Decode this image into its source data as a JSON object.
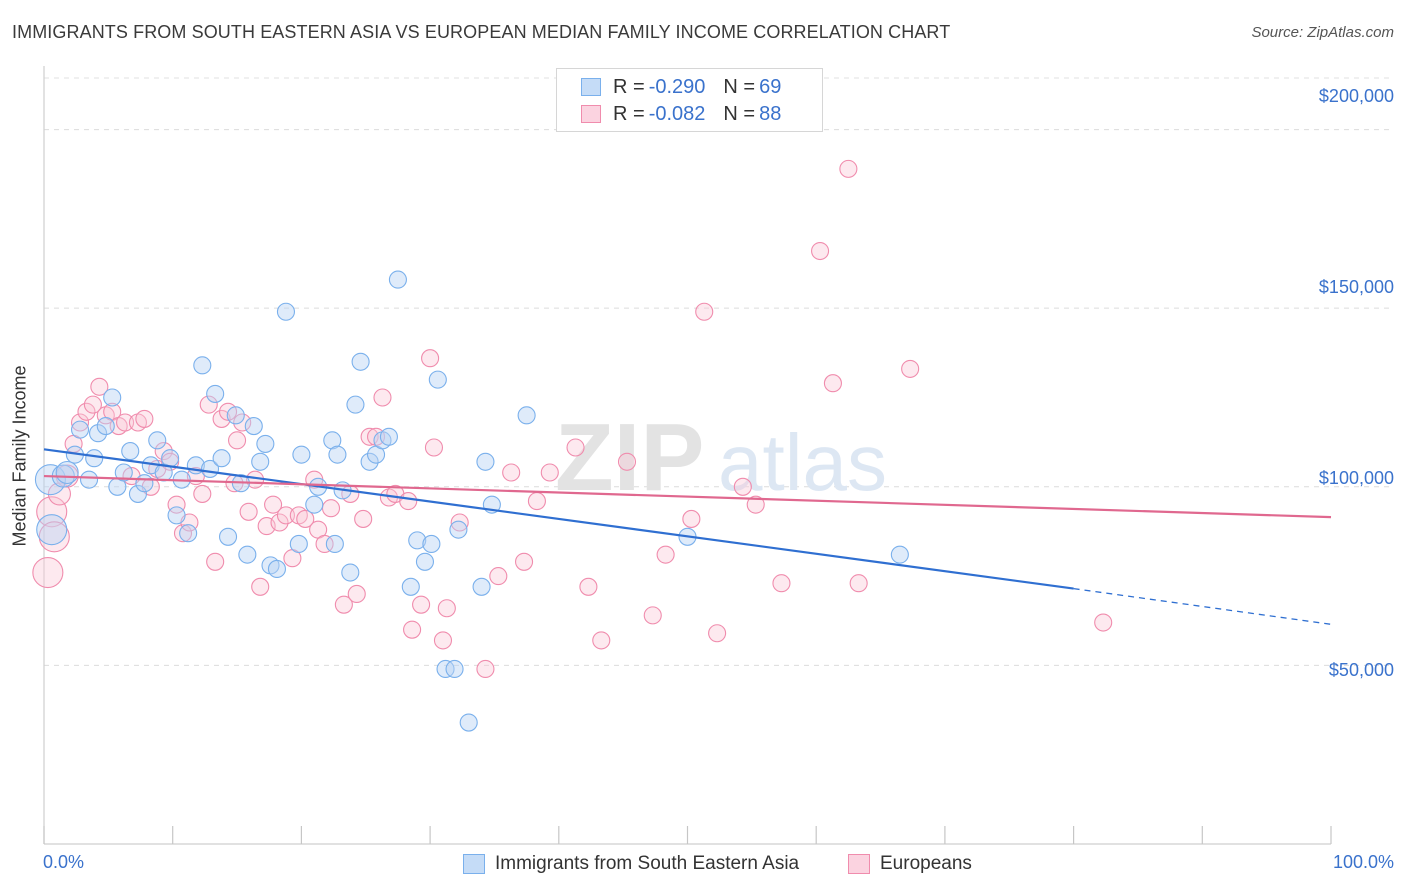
{
  "title": "IMMIGRANTS FROM SOUTH EASTERN ASIA VS EUROPEAN MEDIAN FAMILY INCOME CORRELATION CHART",
  "source": "Source: ZipAtlas.com",
  "watermark": {
    "zip": "ZIP",
    "atlas": "atlas"
  },
  "legend": {
    "rows": [
      {
        "r_label": "R = ",
        "r_value": "-0.290",
        "n_label": "N = ",
        "n_value": "69",
        "color": "#7ab0ec",
        "fill": "#c5dcf7"
      },
      {
        "r_label": "R = ",
        "r_value": "-0.082",
        "n_label": "N = ",
        "n_value": "88",
        "color": "#f08cad",
        "fill": "#fbd3e0"
      }
    ]
  },
  "bottom_legend": {
    "items": [
      {
        "label": "Immigrants from South Eastern Asia",
        "color": "#7ab0ec",
        "fill": "#c5dcf7"
      },
      {
        "label": "Europeans",
        "color": "#f08cad",
        "fill": "#fbd3e0"
      }
    ]
  },
  "chart_data": {
    "type": "scatter",
    "title": "IMMIGRANTS FROM SOUTH EASTERN ASIA VS EUROPEAN MEDIAN FAMILY INCOME CORRELATION CHART",
    "xlabel": "",
    "ylabel": "Median Family Income",
    "xlim": [
      0,
      100
    ],
    "ylim": [
      0,
      215000
    ],
    "x_tick_labels": [
      "0.0%",
      "100.0%"
    ],
    "y_ticks": [
      50000,
      100000,
      150000,
      200000
    ],
    "y_tick_labels": [
      "$50,000",
      "$100,000",
      "$150,000",
      "$200,000"
    ],
    "grid": "horizontal dashed",
    "legend_position": "top-center",
    "colors": {
      "blue_line": "#2f6fd1",
      "pink_line": "#e0688f"
    },
    "series": [
      {
        "name": "Immigrants from South Eastern Asia",
        "trend": {
          "x_start": 0,
          "y_start": 110500,
          "x_solid_end": 80,
          "y_at_solid_end": 71500,
          "x_end": 100,
          "y_end": 61500
        },
        "points": [
          [
            0.5,
            102000
          ],
          [
            0.6,
            88000
          ],
          [
            1.5,
            103000
          ],
          [
            1.8,
            104000
          ],
          [
            2.4,
            109000
          ],
          [
            2.8,
            116000
          ],
          [
            3.5,
            102000
          ],
          [
            3.9,
            108000
          ],
          [
            4.2,
            115000
          ],
          [
            4.8,
            117000
          ],
          [
            5.3,
            125000
          ],
          [
            5.7,
            100000
          ],
          [
            6.2,
            104000
          ],
          [
            6.7,
            110000
          ],
          [
            7.3,
            98000
          ],
          [
            7.8,
            101000
          ],
          [
            8.3,
            106000
          ],
          [
            8.8,
            113000
          ],
          [
            9.3,
            104000
          ],
          [
            9.8,
            108000
          ],
          [
            10.3,
            92000
          ],
          [
            10.7,
            102000
          ],
          [
            11.2,
            87000
          ],
          [
            11.8,
            106000
          ],
          [
            12.3,
            134000
          ],
          [
            12.9,
            105000
          ],
          [
            13.3,
            126000
          ],
          [
            13.8,
            108000
          ],
          [
            14.3,
            86000
          ],
          [
            14.9,
            120000
          ],
          [
            15.3,
            101000
          ],
          [
            15.8,
            81000
          ],
          [
            16.3,
            117000
          ],
          [
            16.8,
            107000
          ],
          [
            17.2,
            112000
          ],
          [
            17.6,
            78000
          ],
          [
            18.1,
            77000
          ],
          [
            18.8,
            149000
          ],
          [
            19.8,
            84000
          ],
          [
            20.0,
            109000
          ],
          [
            21.0,
            95000
          ],
          [
            21.3,
            100000
          ],
          [
            22.4,
            113000
          ],
          [
            22.6,
            84000
          ],
          [
            22.8,
            109000
          ],
          [
            23.2,
            99000
          ],
          [
            23.8,
            76000
          ],
          [
            24.2,
            123000
          ],
          [
            24.6,
            135000
          ],
          [
            25.3,
            107000
          ],
          [
            25.8,
            109000
          ],
          [
            26.3,
            113000
          ],
          [
            26.8,
            114000
          ],
          [
            27.5,
            158000
          ],
          [
            28.5,
            72000
          ],
          [
            29.0,
            85000
          ],
          [
            29.6,
            79000
          ],
          [
            30.1,
            84000
          ],
          [
            30.6,
            130000
          ],
          [
            31.2,
            49000
          ],
          [
            31.9,
            49000
          ],
          [
            32.2,
            88000
          ],
          [
            33.0,
            34000
          ],
          [
            34.0,
            72000
          ],
          [
            34.3,
            107000
          ],
          [
            34.8,
            95000
          ],
          [
            37.5,
            120000
          ],
          [
            50.0,
            86000
          ],
          [
            66.5,
            81000
          ]
        ]
      },
      {
        "name": "Europeans",
        "trend": {
          "x_start": 0,
          "y_start": 103000,
          "x_end": 100,
          "y_end": 91500
        },
        "points": [
          [
            0.3,
            76000
          ],
          [
            0.6,
            93000
          ],
          [
            0.8,
            86000
          ],
          [
            1.2,
            98000
          ],
          [
            1.8,
            103000
          ],
          [
            2.3,
            112000
          ],
          [
            2.8,
            118000
          ],
          [
            3.3,
            121000
          ],
          [
            3.8,
            123000
          ],
          [
            4.3,
            128000
          ],
          [
            4.8,
            120000
          ],
          [
            5.3,
            121000
          ],
          [
            5.8,
            117000
          ],
          [
            6.3,
            118000
          ],
          [
            6.8,
            103000
          ],
          [
            7.3,
            118000
          ],
          [
            7.8,
            119000
          ],
          [
            8.3,
            100000
          ],
          [
            8.8,
            105000
          ],
          [
            9.3,
            110000
          ],
          [
            9.8,
            107000
          ],
          [
            10.3,
            95000
          ],
          [
            10.8,
            87000
          ],
          [
            11.3,
            90000
          ],
          [
            11.8,
            103000
          ],
          [
            12.3,
            98000
          ],
          [
            12.8,
            123000
          ],
          [
            13.3,
            79000
          ],
          [
            13.8,
            119000
          ],
          [
            14.3,
            121000
          ],
          [
            14.8,
            101000
          ],
          [
            15.0,
            113000
          ],
          [
            15.4,
            118000
          ],
          [
            15.9,
            93000
          ],
          [
            16.4,
            102000
          ],
          [
            16.8,
            72000
          ],
          [
            17.3,
            89000
          ],
          [
            17.8,
            95000
          ],
          [
            18.3,
            90000
          ],
          [
            18.8,
            92000
          ],
          [
            19.3,
            80000
          ],
          [
            19.8,
            92000
          ],
          [
            20.3,
            91000
          ],
          [
            21.0,
            102000
          ],
          [
            21.3,
            88000
          ],
          [
            21.8,
            84000
          ],
          [
            22.3,
            94000
          ],
          [
            23.3,
            67000
          ],
          [
            23.8,
            98000
          ],
          [
            24.3,
            70000
          ],
          [
            24.8,
            91000
          ],
          [
            25.3,
            114000
          ],
          [
            25.8,
            114000
          ],
          [
            26.3,
            125000
          ],
          [
            26.8,
            97000
          ],
          [
            27.3,
            98000
          ],
          [
            28.3,
            96000
          ],
          [
            28.6,
            60000
          ],
          [
            29.3,
            67000
          ],
          [
            30.0,
            136000
          ],
          [
            30.3,
            111000
          ],
          [
            31.0,
            57000
          ],
          [
            31.3,
            66000
          ],
          [
            32.3,
            90000
          ],
          [
            34.3,
            49000
          ],
          [
            35.3,
            75000
          ],
          [
            36.3,
            104000
          ],
          [
            37.3,
            79000
          ],
          [
            38.3,
            96000
          ],
          [
            39.3,
            104000
          ],
          [
            41.3,
            111000
          ],
          [
            42.3,
            72000
          ],
          [
            43.3,
            57000
          ],
          [
            45.3,
            107000
          ],
          [
            47.3,
            64000
          ],
          [
            48.3,
            81000
          ],
          [
            50.3,
            91000
          ],
          [
            51.3,
            149000
          ],
          [
            52.3,
            59000
          ],
          [
            54.3,
            100000
          ],
          [
            55.3,
            95000
          ],
          [
            57.3,
            73000
          ],
          [
            60.3,
            166000
          ],
          [
            61.3,
            129000
          ],
          [
            62.5,
            189000
          ],
          [
            63.3,
            73000
          ],
          [
            67.3,
            133000
          ],
          [
            82.3,
            62000
          ]
        ]
      }
    ]
  }
}
